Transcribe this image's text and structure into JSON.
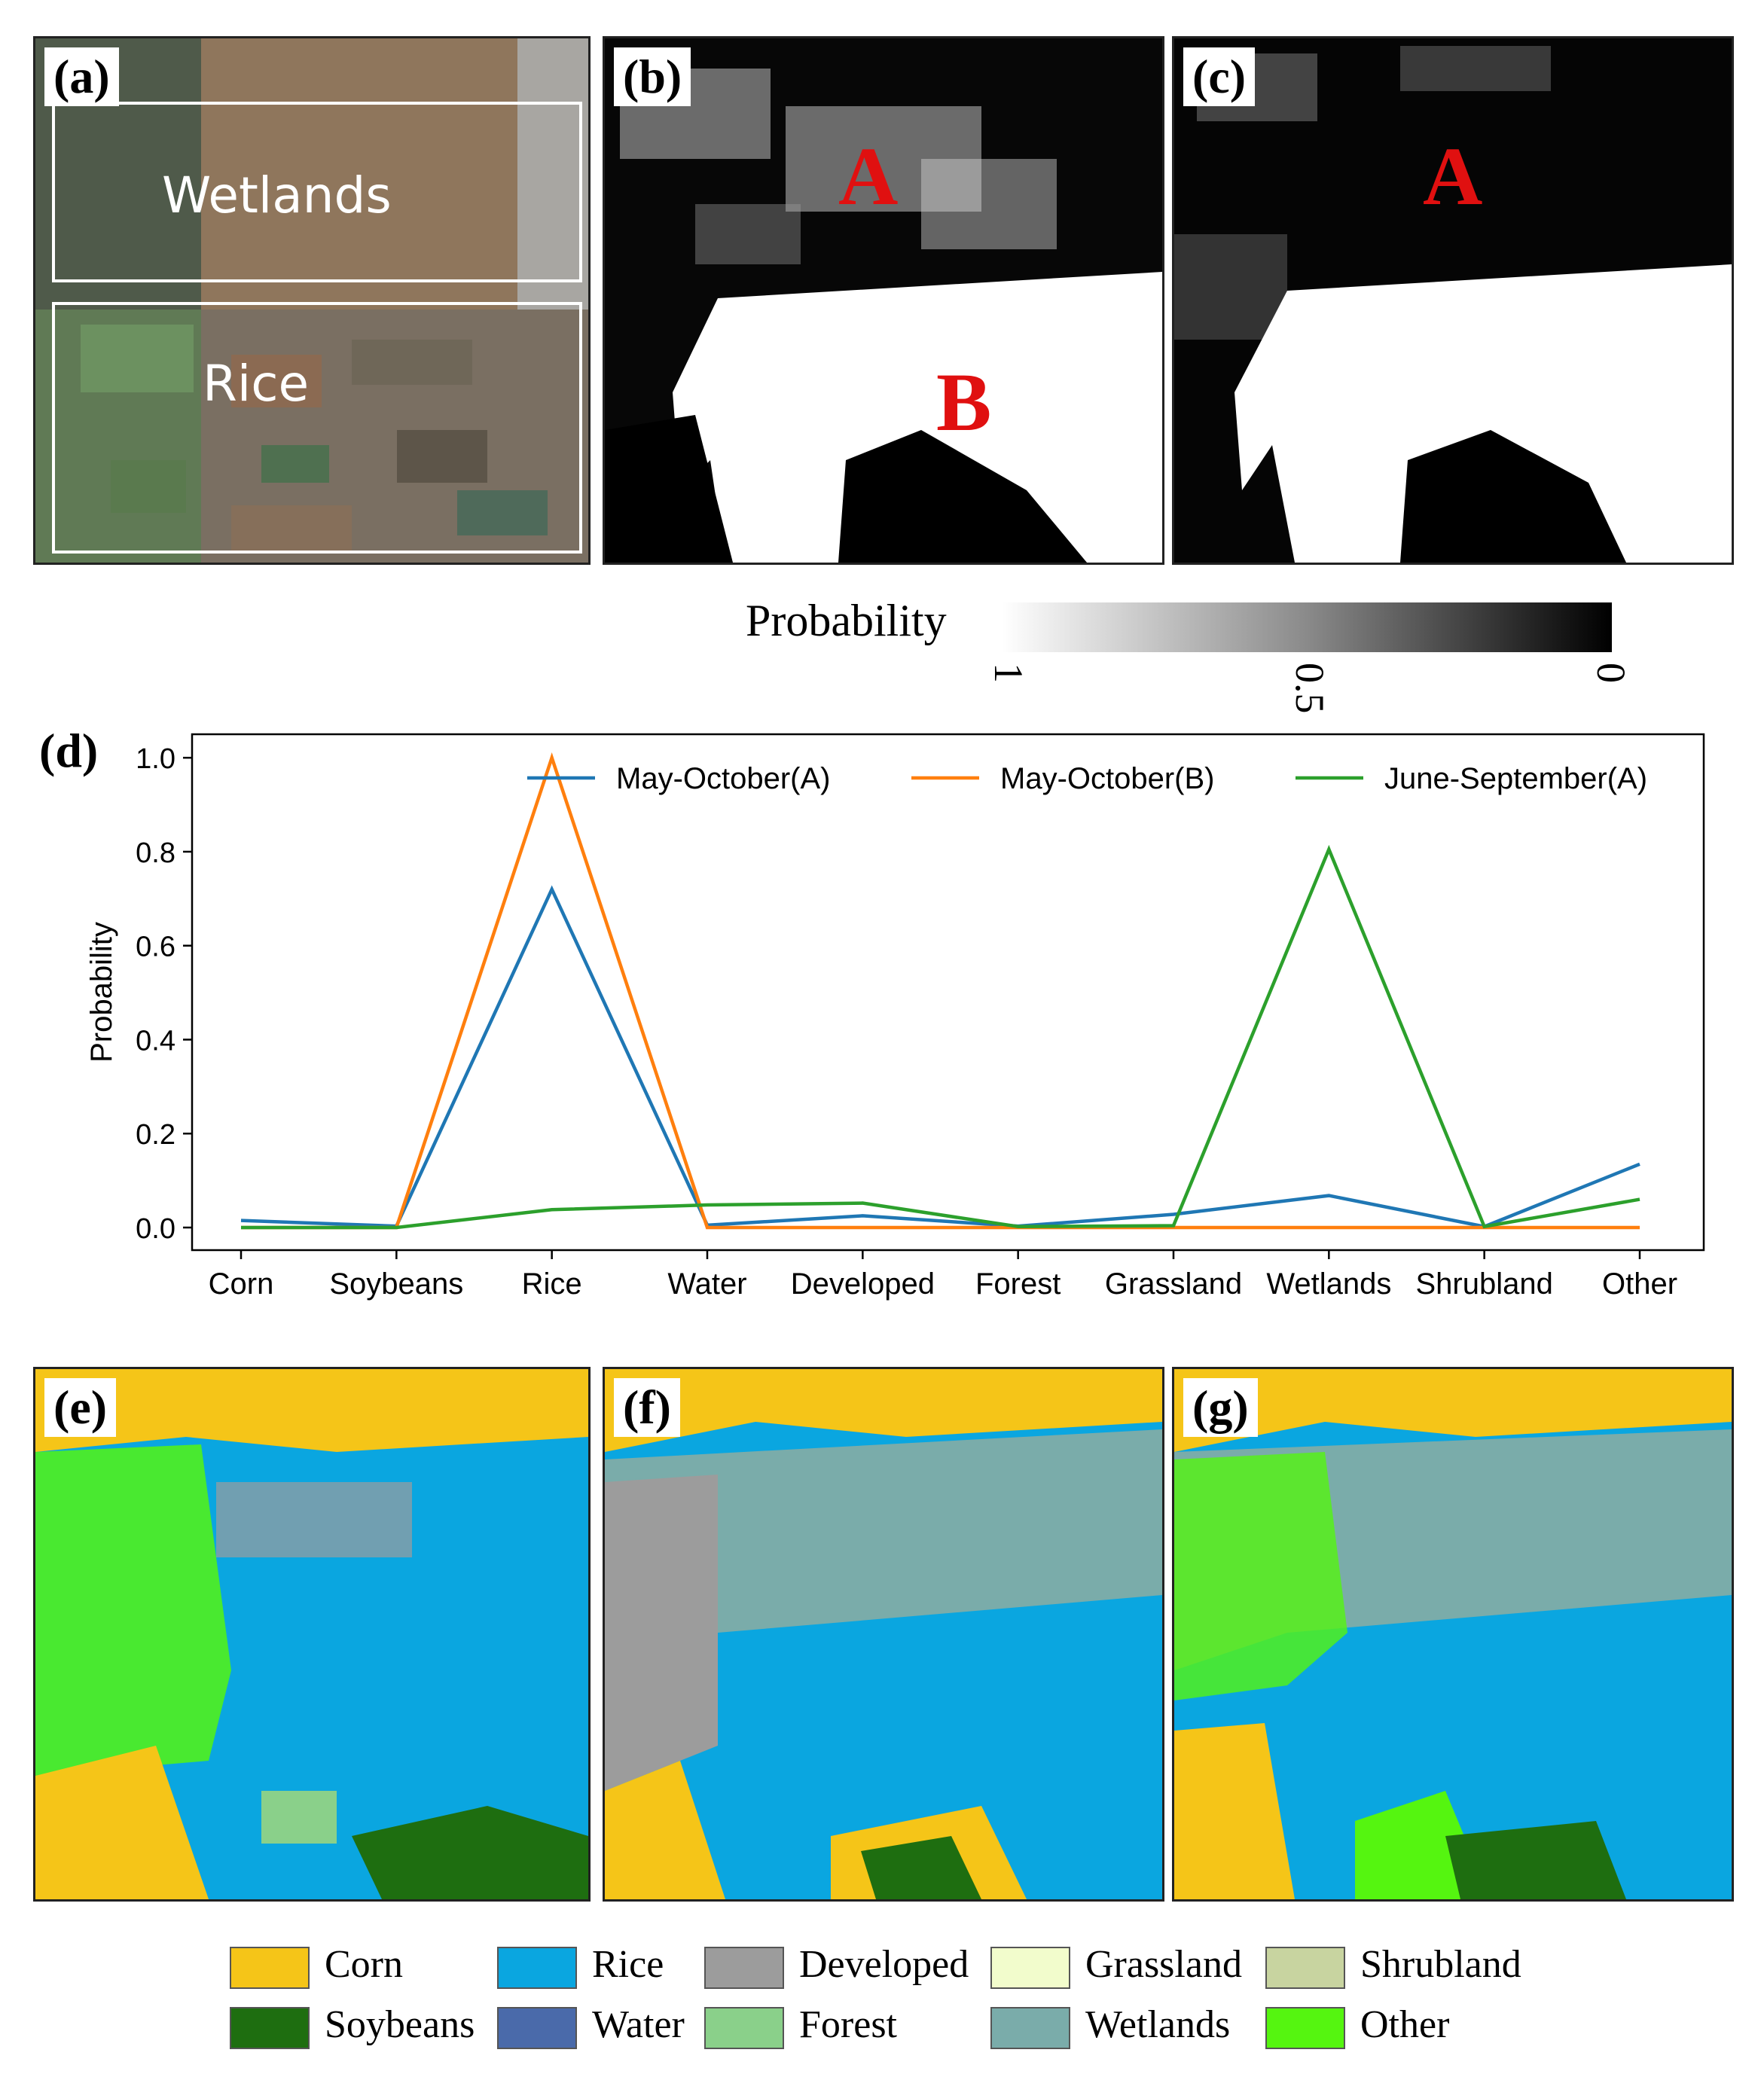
{
  "panels": {
    "a": {
      "label": "(a)",
      "box1": "Wetlands",
      "box2": "Rice"
    },
    "b": {
      "label": "(b)",
      "mark_a": "A",
      "mark_b": "B"
    },
    "c": {
      "label": "(c)",
      "mark_a": "A"
    },
    "e": {
      "label": "(e)"
    },
    "f": {
      "label": "(f)"
    },
    "g": {
      "label": "(g)"
    }
  },
  "colorbar": {
    "title": "Probability",
    "ticks": [
      "1",
      "0.5",
      "0"
    ]
  },
  "chart_data": {
    "type": "line",
    "panel_label": "(d)",
    "ylabel": "Probability",
    "xlabel": "",
    "categories": [
      "Corn",
      "Soybeans",
      "Rice",
      "Water",
      "Developed",
      "Forest",
      "Grassland",
      "Wetlands",
      "Shrubland",
      "Other"
    ],
    "ylim": [
      0,
      1.05
    ],
    "yticks": [
      "0.0",
      "0.2",
      "0.4",
      "0.6",
      "0.8",
      "1.0"
    ],
    "legend_position": "top",
    "series": [
      {
        "name": "May-October(A)",
        "color": "#1f77b4",
        "values": [
          0.015,
          0.003,
          0.72,
          0.005,
          0.025,
          0.003,
          0.028,
          0.068,
          0.002,
          0.135
        ]
      },
      {
        "name": "May-October(B)",
        "color": "#ff7f0e",
        "values": [
          0.0,
          0.0,
          1.0,
          0.0,
          0.0,
          0.0,
          0.0,
          0.0,
          0.0,
          0.0
        ]
      },
      {
        "name": "June-September(A)",
        "color": "#2ca02c",
        "values": [
          0.0,
          0.0,
          0.038,
          0.048,
          0.052,
          0.002,
          0.004,
          0.805,
          0.002,
          0.06
        ]
      }
    ]
  },
  "legend": {
    "items": [
      {
        "label": "Corn",
        "color": "#f5c518"
      },
      {
        "label": "Rice",
        "color": "#0aa6e0"
      },
      {
        "label": "Developed",
        "color": "#9c9c9c"
      },
      {
        "label": "Grassland",
        "color": "#f2fccc"
      },
      {
        "label": "Shrubland",
        "color": "#c8d4a0"
      },
      {
        "label": "Soybeans",
        "color": "#1e6e10"
      },
      {
        "label": "Water",
        "color": "#4a6aaa"
      },
      {
        "label": "Forest",
        "color": "#8ad08a"
      },
      {
        "label": "Wetlands",
        "color": "#7aacaa"
      },
      {
        "label": "Other",
        "color": "#55f510"
      }
    ]
  }
}
